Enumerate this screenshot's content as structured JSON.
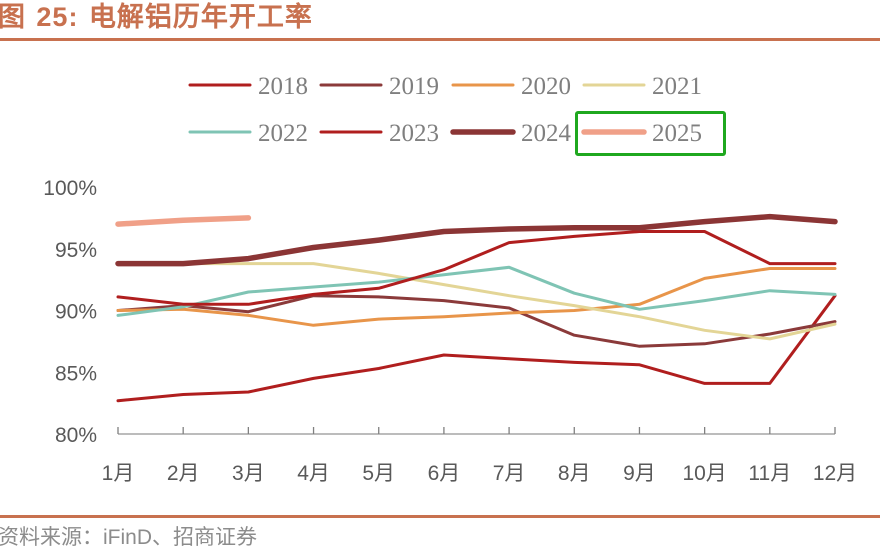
{
  "figure": {
    "title_prefix": "图 ",
    "title_number": "25:",
    "title_text": " 电解铝历年开工率",
    "source_prefix": "资料来源：",
    "source_latin": "iFinD",
    "source_suffix": "、招商证券",
    "highlighted_legend_item": "2025",
    "highlight_color": "#1fa81f",
    "accent_color": "#c8714f"
  },
  "chart_data": {
    "type": "line",
    "title": "电解铝历年开工率",
    "xlabel": "",
    "ylabel": "",
    "categories": [
      "1月",
      "2月",
      "3月",
      "4月",
      "5月",
      "6月",
      "7月",
      "8月",
      "9月",
      "10月",
      "11月",
      "12月"
    ],
    "ylim": [
      80,
      100
    ],
    "yticks": [
      80,
      85,
      90,
      95,
      100
    ],
    "ytick_labels": [
      "80%",
      "85%",
      "90%",
      "95%",
      "100%"
    ],
    "grid": false,
    "legend_position": "top",
    "series": [
      {
        "name": "2018",
        "color": "#b01e1e",
        "width": "normal",
        "values": [
          82.7,
          83.2,
          83.4,
          84.5,
          85.3,
          86.4,
          86.1,
          85.8,
          85.6,
          84.1,
          84.1,
          91.2
        ]
      },
      {
        "name": "2019",
        "color": "#8b3a3a",
        "width": "normal",
        "values": [
          90.0,
          90.4,
          89.9,
          91.2,
          91.1,
          90.8,
          90.2,
          88.0,
          87.1,
          87.3,
          88.1,
          89.1
        ]
      },
      {
        "name": "2020",
        "color": "#e8954a",
        "width": "normal",
        "values": [
          90.0,
          90.1,
          89.6,
          88.8,
          89.3,
          89.5,
          89.8,
          90.0,
          90.5,
          92.6,
          93.4,
          93.4
        ]
      },
      {
        "name": "2021",
        "color": "#e3d596",
        "width": "normal",
        "values": [
          93.8,
          93.8,
          93.8,
          93.8,
          93.0,
          92.1,
          91.2,
          90.4,
          89.5,
          88.4,
          87.7,
          88.9
        ]
      },
      {
        "name": "2022",
        "color": "#7fc4b4",
        "width": "normal",
        "values": [
          89.6,
          90.3,
          91.5,
          91.9,
          92.3,
          92.9,
          93.5,
          91.4,
          90.1,
          90.8,
          91.6,
          91.3
        ]
      },
      {
        "name": "2023",
        "color": "#b01e1e",
        "width": "normal",
        "values": [
          91.1,
          90.5,
          90.5,
          91.3,
          91.8,
          93.3,
          95.5,
          96.0,
          96.4,
          96.4,
          93.8,
          93.8
        ]
      },
      {
        "name": "2024",
        "color": "#8b3535",
        "width": "thick",
        "values": [
          93.8,
          93.8,
          94.2,
          95.1,
          95.7,
          96.4,
          96.6,
          96.7,
          96.7,
          97.2,
          97.6,
          97.2
        ]
      },
      {
        "name": "2025",
        "color": "#f0a088",
        "width": "thick",
        "values": [
          97.0,
          97.3,
          97.5
        ]
      }
    ]
  }
}
